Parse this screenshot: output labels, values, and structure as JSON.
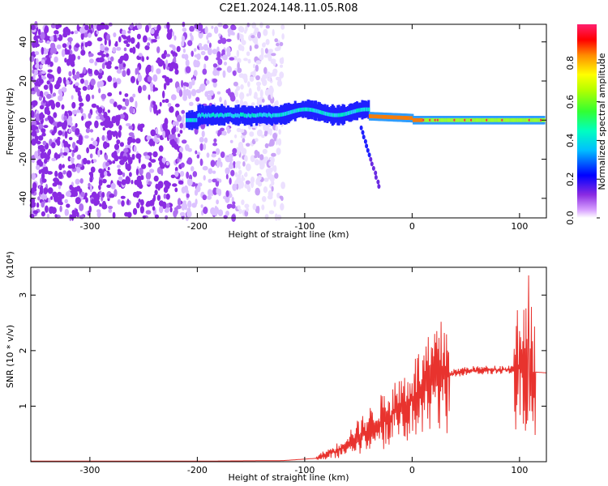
{
  "title": "C2E1.2024.148.11.05.R08",
  "chart_data": [
    {
      "type": "heatmap",
      "name": "spectrogram",
      "xlabel": "Height of straight line (km)",
      "ylabel": "Frequency (Hz)",
      "xlim": [
        -355,
        125
      ],
      "ylim": [
        -50,
        49
      ],
      "x_ticks": [
        -300,
        -200,
        -100,
        0,
        100
      ],
      "y_ticks": [
        -40,
        -20,
        0,
        20,
        40
      ],
      "colorbar": {
        "label": "Normalized spectral amplitude",
        "range": [
          0,
          1
        ],
        "ticks": [
          "0.0",
          "0.2",
          "0.4",
          "0.6",
          "0.8"
        ],
        "colormap": [
          "#ffffff",
          "#8a2be2",
          "#0000ff",
          "#00bfff",
          "#00ff80",
          "#7cfc00",
          "#ffff00",
          "#ff8c00",
          "#ff0000",
          "#ff1493"
        ]
      },
      "features": {
        "noise_region_x": [
          -355,
          -130
        ],
        "signal_band_freq": 0,
        "signal_start_x": -210,
        "signal_end_x": 125
      }
    },
    {
      "type": "line",
      "name": "snr",
      "xlabel": "Height of straight line (km)",
      "ylabel": "SNR (10 * v/v)",
      "y_multiplier": "(x10⁴)",
      "xlim": [
        -355,
        125
      ],
      "ylim": [
        0,
        3.5
      ],
      "x_ticks": [
        -300,
        -200,
        -100,
        0,
        100
      ],
      "y_ticks": [
        1,
        2,
        3
      ],
      "color": "#e8332e",
      "envelope": [
        {
          "x": -355,
          "y": 0.01
        },
        {
          "x": -200,
          "y": 0.01
        },
        {
          "x": -120,
          "y": 0.02
        },
        {
          "x": -90,
          "y": 0.06
        },
        {
          "x": -70,
          "y": 0.2
        },
        {
          "x": -50,
          "y": 0.45
        },
        {
          "x": -30,
          "y": 0.7
        },
        {
          "x": -10,
          "y": 0.95
        },
        {
          "x": 10,
          "y": 1.25
        },
        {
          "x": 30,
          "y": 1.55
        },
        {
          "x": 50,
          "y": 1.64
        },
        {
          "x": 70,
          "y": 1.65
        },
        {
          "x": 90,
          "y": 1.66
        },
        {
          "x": 100,
          "y": 1.7
        },
        {
          "x": 110,
          "y": 1.62
        },
        {
          "x": 125,
          "y": 1.6
        }
      ]
    }
  ]
}
